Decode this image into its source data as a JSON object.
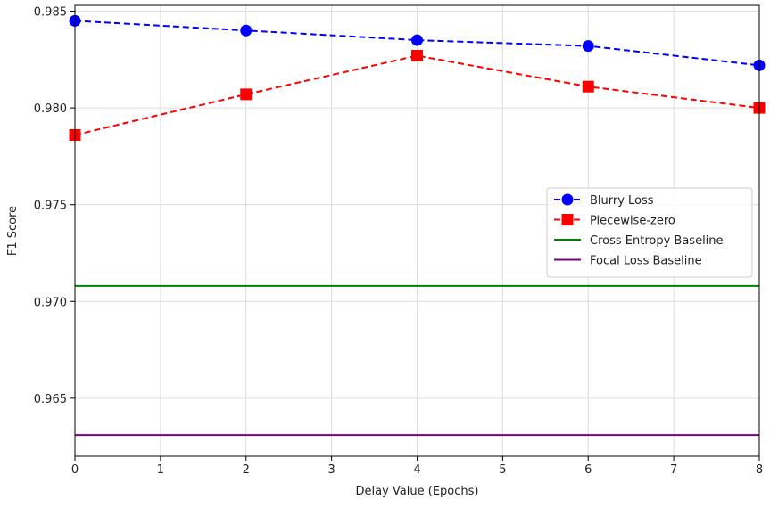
{
  "chart_data": {
    "type": "line",
    "title": "",
    "xlabel": "Delay Value (Epochs)",
    "ylabel": "F1 Score",
    "xlim": [
      0,
      8
    ],
    "ylim": [
      0.962,
      0.9853
    ],
    "x_ticks": [
      0,
      1,
      2,
      3,
      4,
      5,
      6,
      7,
      8
    ],
    "y_ticks": [
      0.965,
      0.97,
      0.975,
      0.98,
      0.985
    ],
    "y_tick_labels": [
      "0.965",
      "0.970",
      "0.975",
      "0.980",
      "0.985"
    ],
    "grid": true,
    "legend_position": "center-right",
    "series": [
      {
        "name": "Blurry Loss",
        "color": "#0000ff",
        "linestyle": "dashed",
        "marker": "circle",
        "x": [
          0,
          2,
          4,
          6,
          8
        ],
        "y": [
          0.9845,
          0.984,
          0.9835,
          0.9832,
          0.9822
        ]
      },
      {
        "name": "Piecewise-zero",
        "color": "#ff0000",
        "linestyle": "dashed",
        "marker": "square",
        "x": [
          0,
          2,
          4,
          6,
          8
        ],
        "y": [
          0.9786,
          0.9807,
          0.9827,
          0.9811,
          0.98
        ]
      }
    ],
    "baselines": [
      {
        "name": "Cross Entropy Baseline",
        "color": "#008000",
        "y": 0.9708
      },
      {
        "name": "Focal Loss Baseline",
        "color": "#800080",
        "y": 0.9631
      }
    ]
  }
}
